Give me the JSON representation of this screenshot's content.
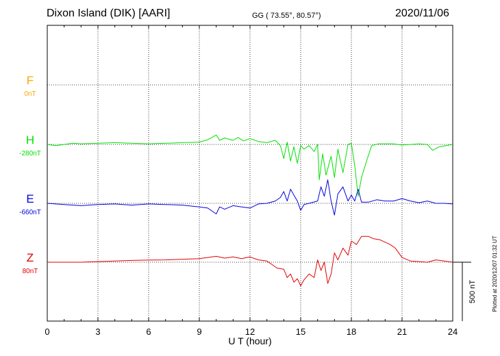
{
  "header": {
    "station": "Dixon Island (DIK)  [AARI]",
    "coords": "GG ( 73.55°,  80.57°)",
    "date": "2020/11/06"
  },
  "side_note": "Plotted at 2020/12/07 01:32 UT",
  "chart_data": {
    "type": "line",
    "xlabel": "U T (hour)",
    "xlim": [
      0,
      24
    ],
    "xticks": [
      "0",
      "3",
      "6",
      "9",
      "12",
      "15",
      "18",
      "21",
      "24"
    ],
    "scale_bar_label": "500 nT",
    "series": [
      {
        "name": "F",
        "baseline_label": "0nT",
        "color": "#ffa500",
        "values": []
      },
      {
        "name": "H",
        "baseline_label": "-280nT",
        "color": "#00e000",
        "x": [
          0,
          0.5,
          1,
          1.5,
          2,
          3,
          4,
          5,
          6,
          7,
          8,
          9,
          9.5,
          10,
          10.2,
          10.5,
          11,
          11.3,
          11.6,
          12,
          12.5,
          13,
          13.5,
          13.8,
          14,
          14.2,
          14.4,
          14.6,
          14.8,
          15,
          15.2,
          15.5,
          15.8,
          16,
          16.1,
          16.3,
          16.5,
          16.8,
          17,
          17.2,
          17.5,
          17.8,
          18,
          18.2,
          18.4,
          18.6,
          18.9,
          19.2,
          19.6,
          20,
          20.5,
          21,
          21.5,
          22,
          22.5,
          22.8,
          23.2,
          23.6,
          24
        ],
        "values": [
          -280,
          -290,
          -280,
          -270,
          -275,
          -270,
          -265,
          -270,
          -275,
          -270,
          -265,
          -260,
          -240,
          -200,
          -245,
          -225,
          -245,
          -220,
          -250,
          -230,
          -255,
          -265,
          -245,
          -290,
          -400,
          -260,
          -420,
          -300,
          -440,
          -290,
          -320,
          -290,
          -340,
          -280,
          -580,
          -360,
          -540,
          -380,
          -560,
          -320,
          -520,
          -280,
          -270,
          -460,
          -720,
          -560,
          -420,
          -290,
          -275,
          -275,
          -275,
          -285,
          -280,
          -275,
          -280,
          -330,
          -300,
          -290,
          -280
        ]
      },
      {
        "name": "E",
        "baseline_label": "-660nT",
        "color": "#0000e0",
        "x": [
          0,
          1,
          2,
          3,
          4,
          5,
          6,
          7,
          8,
          9,
          9.5,
          10,
          10.2,
          10.5,
          11,
          11.5,
          12,
          12.5,
          13,
          13.5,
          13.8,
          14,
          14.2,
          14.4,
          14.6,
          14.8,
          15,
          15.2,
          15.5,
          16,
          16.2,
          16.4,
          16.6,
          16.8,
          17,
          17.2,
          17.5,
          17.8,
          18,
          18.2,
          18.4,
          18.6,
          19,
          19.5,
          20,
          20.5,
          21,
          21.5,
          22,
          22.5,
          23,
          23.5,
          24
        ],
        "values": [
          -660,
          -670,
          -680,
          -670,
          -665,
          -675,
          -665,
          -670,
          -675,
          -690,
          -700,
          -750,
          -690,
          -710,
          -680,
          -690,
          -700,
          -665,
          -660,
          -640,
          -610,
          -560,
          -640,
          -540,
          -590,
          -640,
          -720,
          -670,
          -660,
          -640,
          -520,
          -600,
          -460,
          -640,
          -760,
          -580,
          -520,
          -640,
          -590,
          -640,
          -540,
          -650,
          -650,
          -630,
          -640,
          -640,
          -620,
          -640,
          -655,
          -640,
          -660,
          -660,
          -665
        ]
      },
      {
        "name": "Z",
        "baseline_label": "80nT",
        "color": "#e00000",
        "x": [
          0,
          1,
          2,
          3,
          4,
          5,
          6,
          7,
          8,
          9,
          9.5,
          10,
          10.5,
          11,
          11.5,
          12,
          12.5,
          13,
          13.3,
          13.6,
          14,
          14.2,
          14.4,
          14.6,
          14.8,
          15,
          15.2,
          15.5,
          15.8,
          16,
          16.2,
          16.4,
          16.6,
          16.8,
          17,
          17.2,
          17.5,
          17.8,
          18,
          18.3,
          18.6,
          19,
          19.3,
          19.7,
          20,
          20.3,
          20.6,
          21,
          21.5,
          22,
          22.5,
          23,
          23.5,
          24
        ],
        "values": [
          80,
          80,
          80,
          85,
          90,
          95,
          98,
          100,
          105,
          110,
          120,
          130,
          115,
          125,
          110,
          125,
          100,
          90,
          60,
          30,
          20,
          -50,
          -20,
          -90,
          -60,
          -120,
          -70,
          -20,
          -50,
          100,
          10,
          80,
          -100,
          -20,
          160,
          100,
          200,
          140,
          260,
          230,
          300,
          300,
          280,
          270,
          250,
          230,
          200,
          120,
          90,
          85,
          80,
          100,
          90,
          80
        ]
      }
    ]
  }
}
